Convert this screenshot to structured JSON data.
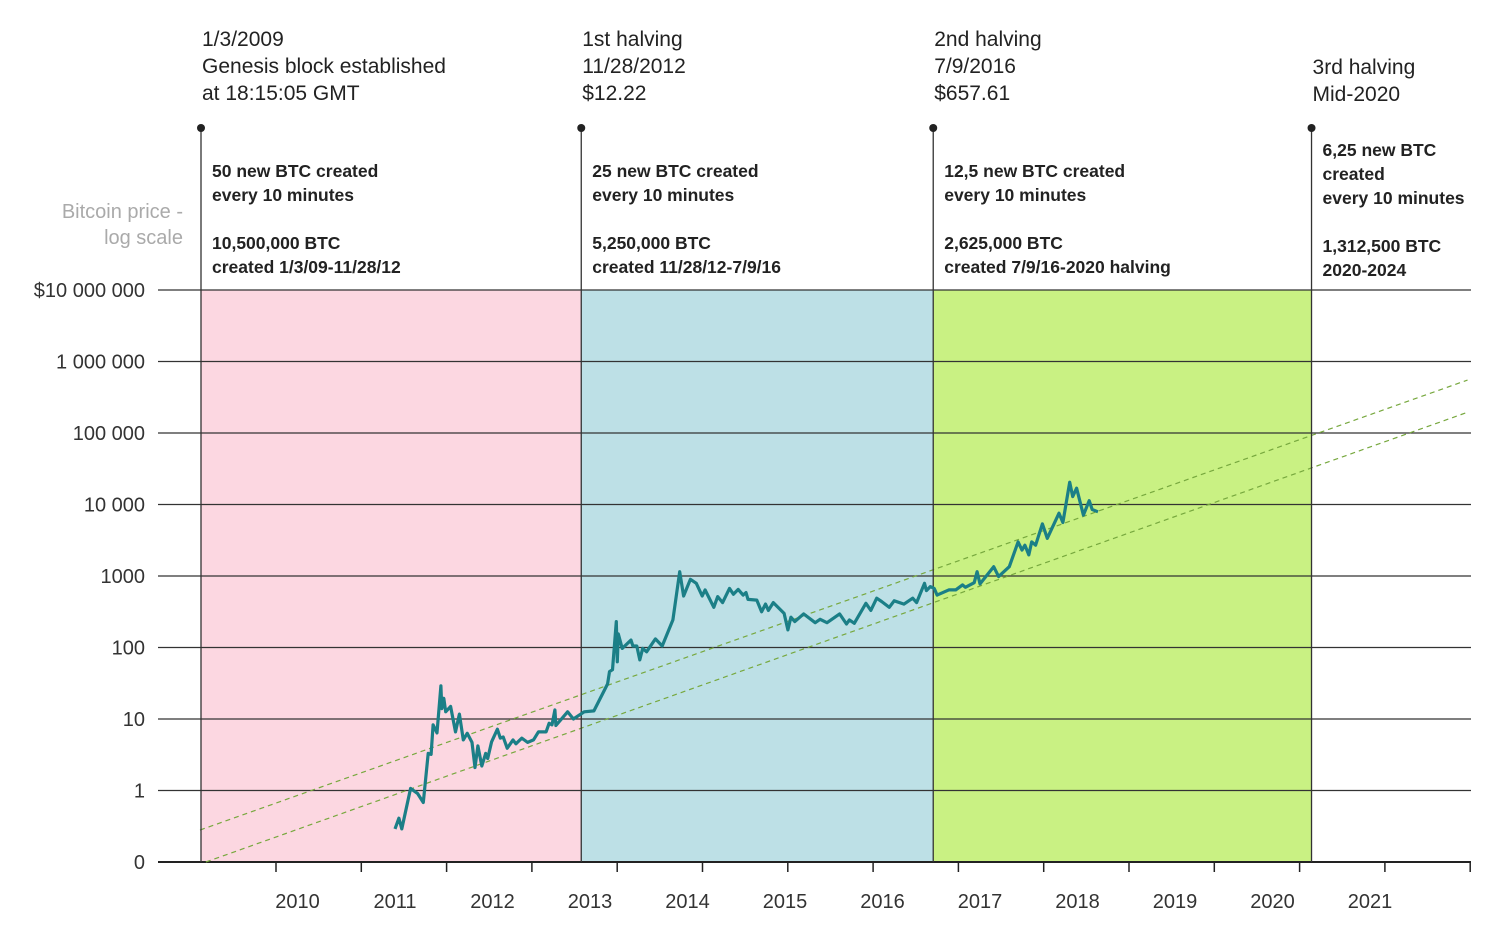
{
  "chart_data": {
    "type": "line",
    "title": "",
    "ylabel": [
      "Bitcoin price -",
      "log scale"
    ],
    "xlabel": "",
    "y_scale": "log",
    "ylim": [
      0.1,
      10000000
    ],
    "xlim": [
      2009.0,
      2022.0
    ],
    "grid": "horizontal",
    "y_ticks": [
      {
        "value": 10000000,
        "label": "$10 000 000"
      },
      {
        "value": 1000000,
        "label": "1 000 000"
      },
      {
        "value": 100000,
        "label": "100 000"
      },
      {
        "value": 10000,
        "label": "10 000"
      },
      {
        "value": 1000,
        "label": "1000"
      },
      {
        "value": 100,
        "label": "100"
      },
      {
        "value": 10,
        "label": "10"
      },
      {
        "value": 1,
        "label": "1"
      },
      {
        "value": 0.1,
        "label": "0"
      }
    ],
    "x_ticks": [
      {
        "value": 2010,
        "label": "2010"
      },
      {
        "value": 2011,
        "label": "2011"
      },
      {
        "value": 2012,
        "label": "2012"
      },
      {
        "value": 2013,
        "label": "2013"
      },
      {
        "value": 2014,
        "label": "2014"
      },
      {
        "value": 2015,
        "label": "2015"
      },
      {
        "value": 2016,
        "label": "2016"
      },
      {
        "value": 2017,
        "label": "2017"
      },
      {
        "value": 2018,
        "label": "2018"
      },
      {
        "value": 2019,
        "label": "2019"
      },
      {
        "value": 2020,
        "label": "2020"
      },
      {
        "value": 2021,
        "label": "2021"
      }
    ],
    "eras": [
      {
        "from": 2009.01,
        "to": 2012.91,
        "color": "#fcd7e1"
      },
      {
        "from": 2012.91,
        "to": 2016.52,
        "color": "#bde0e6"
      },
      {
        "from": 2016.52,
        "to": 2020.4,
        "color": "#c9f183"
      }
    ],
    "events": [
      {
        "x": 2009.01,
        "header": [
          "1/3/2009",
          "Genesis block established",
          "at 18:15:05 GMT"
        ],
        "body": [
          "50 new BTC created",
          "every 10 minutes",
          "",
          "10,500,000 BTC",
          "created 1/3/09-11/28/12"
        ]
      },
      {
        "x": 2012.91,
        "header": [
          "1st halving",
          "11/28/2012",
          "$12.22"
        ],
        "body": [
          "25 new BTC created",
          "every 10 minutes",
          "",
          "5,250,000 BTC",
          "created 11/28/12-7/9/16"
        ]
      },
      {
        "x": 2016.52,
        "header": [
          "2nd halving",
          "7/9/2016",
          "$657.61"
        ],
        "body": [
          "12,5 new BTC created",
          "every 10 minutes",
          "",
          "2,625,000 BTC",
          "created 7/9/16-2020 halving"
        ]
      },
      {
        "x": 2020.4,
        "header": [
          "3rd halving",
          "Mid-2020"
        ],
        "body": [
          "6,25 new BTC",
          "created",
          "every 10 minutes",
          "",
          "1,312,500 BTC",
          "2020-2024"
        ]
      }
    ],
    "trend_lines": [
      {
        "from": [
          2009.0,
          0.28
        ],
        "to": [
          2022.0,
          550000
        ],
        "style": "dashed",
        "color": "#77a83e"
      },
      {
        "from": [
          2009.06,
          0.1
        ],
        "to": [
          2022.0,
          195000
        ],
        "style": "dashed",
        "color": "#77a83e"
      }
    ],
    "series": [
      {
        "color": "#1b7f87",
        "points": [
          [
            2011.0,
            0.29
          ],
          [
            2011.04,
            0.41
          ],
          [
            2011.07,
            0.29
          ],
          [
            2011.16,
            1.07
          ],
          [
            2011.23,
            0.91
          ],
          [
            2011.29,
            0.68
          ],
          [
            2011.34,
            3.3
          ],
          [
            2011.37,
            3.2
          ],
          [
            2011.39,
            8.3
          ],
          [
            2011.43,
            6.4
          ],
          [
            2011.47,
            29
          ],
          [
            2011.48,
            14
          ],
          [
            2011.5,
            19.5
          ],
          [
            2011.52,
            12.6
          ],
          [
            2011.57,
            15
          ],
          [
            2011.62,
            6.6
          ],
          [
            2011.66,
            11.7
          ],
          [
            2011.7,
            5.1
          ],
          [
            2011.74,
            6.3
          ],
          [
            2011.79,
            4.7
          ],
          [
            2011.82,
            2.1
          ],
          [
            2011.85,
            4.2
          ],
          [
            2011.89,
            2.2
          ],
          [
            2011.93,
            3.3
          ],
          [
            2011.95,
            2.8
          ],
          [
            2011.99,
            4.8
          ],
          [
            2012.05,
            7.2
          ],
          [
            2012.08,
            5.4
          ],
          [
            2012.11,
            5.6
          ],
          [
            2012.15,
            3.9
          ],
          [
            2012.21,
            5.1
          ],
          [
            2012.24,
            4.5
          ],
          [
            2012.3,
            5.4
          ],
          [
            2012.36,
            4.7
          ],
          [
            2012.42,
            5.1
          ],
          [
            2012.47,
            6.6
          ],
          [
            2012.55,
            6.6
          ],
          [
            2012.58,
            8.7
          ],
          [
            2012.61,
            8.3
          ],
          [
            2012.64,
            13.4
          ],
          [
            2012.65,
            8.1
          ],
          [
            2012.77,
            12.6
          ],
          [
            2012.83,
            10
          ],
          [
            2012.94,
            12.6
          ],
          [
            2013.04,
            13
          ],
          [
            2013.18,
            31
          ],
          [
            2013.2,
            46
          ],
          [
            2013.23,
            49
          ],
          [
            2013.27,
            230
          ],
          [
            2013.28,
            63
          ],
          [
            2013.29,
            155
          ],
          [
            2013.33,
            97
          ],
          [
            2013.42,
            127
          ],
          [
            2013.44,
            105
          ],
          [
            2013.48,
            105
          ],
          [
            2013.51,
            67
          ],
          [
            2013.54,
            97
          ],
          [
            2013.58,
            87
          ],
          [
            2013.67,
            132
          ],
          [
            2013.74,
            105
          ],
          [
            2013.85,
            243
          ],
          [
            2013.92,
            1150
          ],
          [
            2013.96,
            525
          ],
          [
            2014.03,
            900
          ],
          [
            2014.09,
            790
          ],
          [
            2014.15,
            525
          ],
          [
            2014.18,
            640
          ],
          [
            2014.27,
            365
          ],
          [
            2014.31,
            515
          ],
          [
            2014.36,
            425
          ],
          [
            2014.43,
            670
          ],
          [
            2014.47,
            555
          ],
          [
            2014.52,
            650
          ],
          [
            2014.57,
            540
          ],
          [
            2014.6,
            585
          ],
          [
            2014.62,
            470
          ],
          [
            2014.71,
            460
          ],
          [
            2014.76,
            316
          ],
          [
            2014.8,
            405
          ],
          [
            2014.83,
            330
          ],
          [
            2014.88,
            425
          ],
          [
            2014.99,
            300
          ],
          [
            2015.03,
            176
          ],
          [
            2015.06,
            265
          ],
          [
            2015.1,
            230
          ],
          [
            2015.19,
            295
          ],
          [
            2015.31,
            222
          ],
          [
            2015.36,
            248
          ],
          [
            2015.43,
            222
          ],
          [
            2015.56,
            295
          ],
          [
            2015.63,
            213
          ],
          [
            2015.66,
            243
          ],
          [
            2015.71,
            218
          ],
          [
            2015.83,
            415
          ],
          [
            2015.88,
            330
          ],
          [
            2015.94,
            490
          ],
          [
            2015.99,
            440
          ],
          [
            2016.07,
            365
          ],
          [
            2016.12,
            450
          ],
          [
            2016.22,
            405
          ],
          [
            2016.31,
            490
          ],
          [
            2016.35,
            425
          ],
          [
            2016.43,
            790
          ],
          [
            2016.45,
            625
          ],
          [
            2016.49,
            710
          ],
          [
            2016.53,
            670
          ],
          [
            2016.56,
            540
          ],
          [
            2016.68,
            640
          ],
          [
            2016.75,
            640
          ],
          [
            2016.82,
            750
          ],
          [
            2016.85,
            695
          ],
          [
            2016.94,
            805
          ],
          [
            2016.97,
            1150
          ],
          [
            2017.0,
            775
          ],
          [
            2017.14,
            1350
          ],
          [
            2017.19,
            980
          ],
          [
            2017.3,
            1350
          ],
          [
            2017.39,
            3000
          ],
          [
            2017.43,
            2300
          ],
          [
            2017.46,
            2700
          ],
          [
            2017.5,
            1970
          ],
          [
            2017.53,
            3000
          ],
          [
            2017.57,
            2700
          ],
          [
            2017.64,
            5350
          ],
          [
            2017.69,
            3370
          ],
          [
            2017.81,
            7550
          ],
          [
            2017.85,
            5600
          ],
          [
            2017.92,
            20500
          ],
          [
            2017.95,
            12900
          ],
          [
            2017.99,
            16900
          ],
          [
            2018.06,
            7100
          ],
          [
            2018.12,
            11300
          ],
          [
            2018.15,
            8500
          ],
          [
            2018.21,
            7900
          ]
        ]
      }
    ]
  }
}
